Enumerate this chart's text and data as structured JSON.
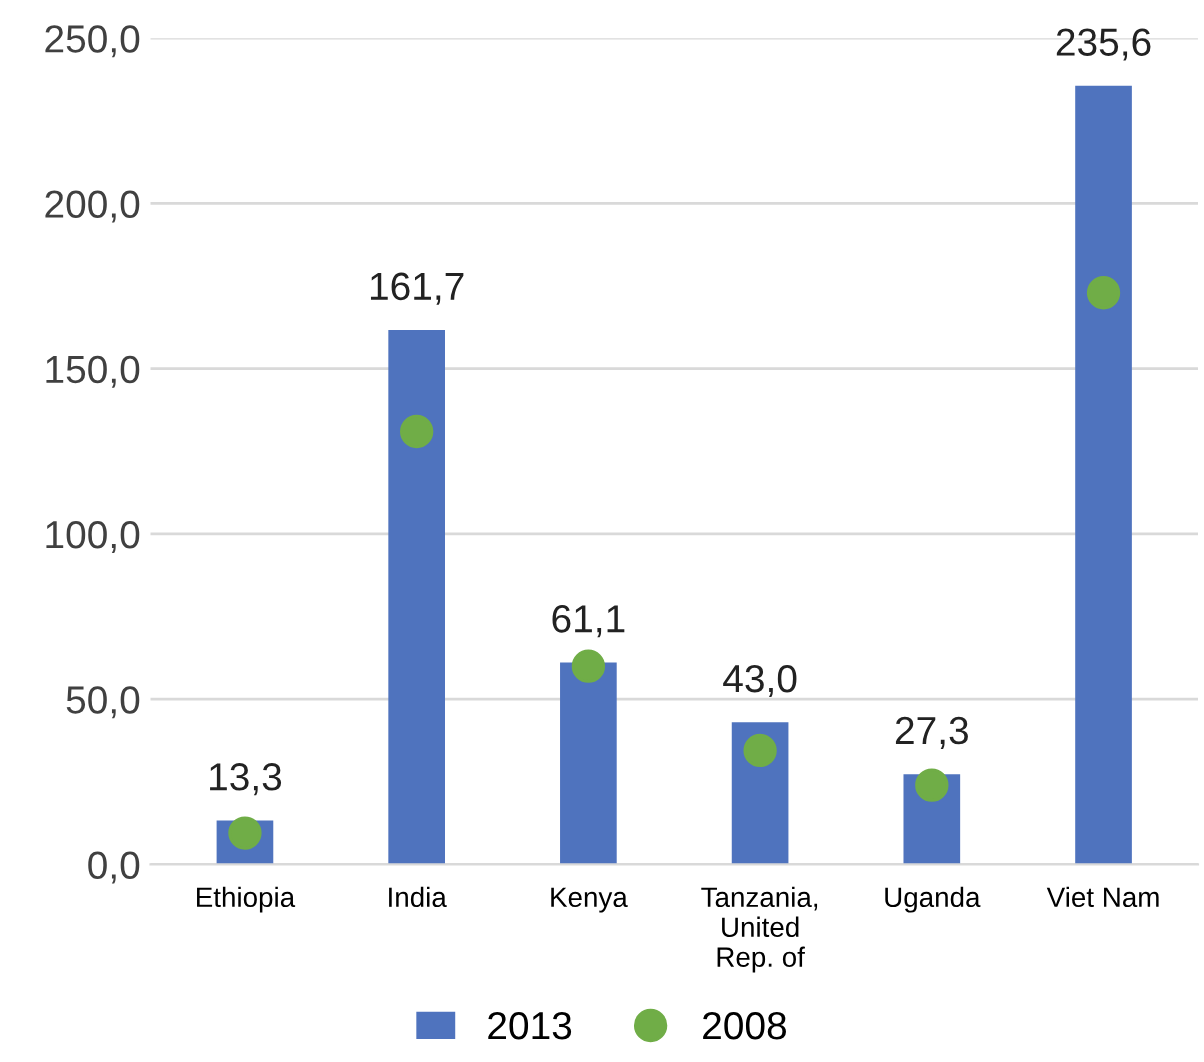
{
  "chart_data": {
    "type": "bar",
    "categories": [
      "Ethiopia",
      "India",
      "Kenya",
      "Tanzania,\nUnited\nRep. of",
      "Uganda",
      "Viet Nam"
    ],
    "series": [
      {
        "name": "2013",
        "color": "#4f73be",
        "values": [
          13.3,
          161.7,
          61.1,
          43.0,
          27.3,
          235.6
        ],
        "value_labels": [
          "13,3",
          "161,7",
          "61,1",
          "43,0",
          "27,3",
          "235,6"
        ]
      },
      {
        "name": "2008",
        "type": "scatter",
        "color": "#70ad47",
        "values": [
          9.5,
          131,
          60,
          34.5,
          24,
          173
        ]
      }
    ],
    "ylim": [
      0,
      250
    ],
    "yticks": [
      {
        "value": 0,
        "label": "0,0"
      },
      {
        "value": 50,
        "label": "50,0"
      },
      {
        "value": 100,
        "label": "100,0"
      },
      {
        "value": 150,
        "label": "150,0"
      },
      {
        "value": 200,
        "label": "200,0"
      },
      {
        "value": 250,
        "label": "250,0"
      }
    ],
    "grid": "y",
    "legend": "bottom",
    "marker": "circle"
  }
}
